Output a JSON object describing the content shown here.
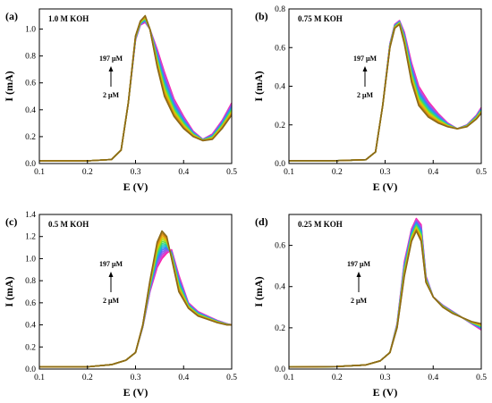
{
  "chart_data": [
    {
      "type": "line",
      "panel_label": "(a)",
      "condition": "1.0 M KOH",
      "xlabel": "E (V)",
      "ylabel": "I (mA)",
      "xlim": [
        0.1,
        0.5
      ],
      "ylim": [
        0.0,
        1.15
      ],
      "xticks": [
        "0.1",
        "0.2",
        "0.3",
        "0.4",
        "0.5"
      ],
      "yticks": [
        "0.0",
        "0.2",
        "0.4",
        "0.6",
        "0.8",
        "1.0"
      ],
      "ytick_values": [
        0.0,
        0.2,
        0.4,
        0.6,
        0.8,
        1.0
      ],
      "conc_high": "197 μM",
      "conc_low": "2 μM",
      "curve_count": 14,
      "series_low": {
        "x": [
          0.1,
          0.2,
          0.25,
          0.27,
          0.285,
          0.3,
          0.31,
          0.32,
          0.33,
          0.345,
          0.36,
          0.38,
          0.4,
          0.42,
          0.44,
          0.46,
          0.48,
          0.5
        ],
        "y": [
          0.02,
          0.02,
          0.03,
          0.1,
          0.45,
          0.95,
          1.06,
          1.1,
          1.0,
          0.72,
          0.5,
          0.35,
          0.26,
          0.2,
          0.17,
          0.18,
          0.26,
          0.36
        ]
      },
      "series_high": {
        "x": [
          0.1,
          0.2,
          0.25,
          0.27,
          0.285,
          0.3,
          0.31,
          0.32,
          0.33,
          0.345,
          0.36,
          0.38,
          0.4,
          0.42,
          0.44,
          0.46,
          0.48,
          0.5
        ],
        "y": [
          0.02,
          0.02,
          0.03,
          0.1,
          0.45,
          0.92,
          1.03,
          1.05,
          1.0,
          0.85,
          0.68,
          0.48,
          0.35,
          0.24,
          0.18,
          0.22,
          0.32,
          0.45
        ]
      }
    },
    {
      "type": "line",
      "panel_label": "(b)",
      "condition": "0.75 M KOH",
      "xlabel": "E (V)",
      "ylabel": "I (mA)",
      "xlim": [
        0.1,
        0.5
      ],
      "ylim": [
        0.0,
        0.8
      ],
      "xticks": [
        "0.1",
        "0.2",
        "0.3",
        "0.4",
        "0.5"
      ],
      "yticks": [
        "0.0",
        "0.2",
        "0.4",
        "0.6",
        "0.8"
      ],
      "ytick_values": [
        0.0,
        0.2,
        0.4,
        0.6,
        0.8
      ],
      "conc_high": "197 μM",
      "conc_low": "2 μM",
      "curve_count": 14,
      "series_low": {
        "x": [
          0.1,
          0.2,
          0.26,
          0.28,
          0.295,
          0.31,
          0.32,
          0.33,
          0.34,
          0.355,
          0.37,
          0.39,
          0.41,
          0.43,
          0.45,
          0.47,
          0.49,
          0.5
        ],
        "y": [
          0.015,
          0.015,
          0.02,
          0.06,
          0.3,
          0.6,
          0.7,
          0.72,
          0.62,
          0.42,
          0.3,
          0.24,
          0.21,
          0.19,
          0.18,
          0.19,
          0.23,
          0.26
        ]
      },
      "series_high": {
        "x": [
          0.1,
          0.2,
          0.26,
          0.28,
          0.295,
          0.31,
          0.32,
          0.33,
          0.34,
          0.355,
          0.37,
          0.39,
          0.41,
          0.43,
          0.45,
          0.47,
          0.49,
          0.5
        ],
        "y": [
          0.015,
          0.015,
          0.02,
          0.06,
          0.3,
          0.62,
          0.72,
          0.74,
          0.68,
          0.52,
          0.4,
          0.32,
          0.26,
          0.21,
          0.18,
          0.2,
          0.25,
          0.29
        ]
      }
    },
    {
      "type": "line",
      "panel_label": "(c)",
      "condition": "0.5 M KOH",
      "xlabel": "E (V)",
      "ylabel": "I (mA)",
      "xlim": [
        0.1,
        0.5
      ],
      "ylim": [
        0.0,
        1.4
      ],
      "xticks": [
        "0.1",
        "0.2",
        "0.3",
        "0.4",
        "0.5"
      ],
      "yticks": [
        "0.0",
        "0.2",
        "0.4",
        "0.6",
        "0.8",
        "1.0",
        "1.2",
        "1.4"
      ],
      "ytick_values": [
        0.0,
        0.2,
        0.4,
        0.6,
        0.8,
        1.0,
        1.2,
        1.4
      ],
      "conc_high": "197 μM",
      "conc_low": "2 μM",
      "curve_count": 14,
      "series_low": {
        "x": [
          0.1,
          0.2,
          0.25,
          0.28,
          0.3,
          0.315,
          0.33,
          0.345,
          0.355,
          0.365,
          0.375,
          0.39,
          0.41,
          0.43,
          0.45,
          0.47,
          0.49,
          0.5
        ],
        "y": [
          0.02,
          0.02,
          0.04,
          0.08,
          0.15,
          0.4,
          0.8,
          1.15,
          1.25,
          1.2,
          1.0,
          0.7,
          0.55,
          0.48,
          0.45,
          0.42,
          0.4,
          0.4
        ]
      },
      "series_high": {
        "x": [
          0.1,
          0.2,
          0.25,
          0.28,
          0.3,
          0.315,
          0.33,
          0.345,
          0.355,
          0.365,
          0.375,
          0.39,
          0.41,
          0.43,
          0.45,
          0.47,
          0.49,
          0.5
        ],
        "y": [
          0.02,
          0.02,
          0.04,
          0.08,
          0.15,
          0.38,
          0.7,
          0.92,
          1.0,
          1.05,
          1.08,
          0.85,
          0.6,
          0.52,
          0.48,
          0.44,
          0.41,
          0.4
        ]
      }
    },
    {
      "type": "line",
      "panel_label": "(d)",
      "condition": "0.25 M KOH",
      "xlabel": "E (V)",
      "ylabel": "I (mA)",
      "xlim": [
        0.1,
        0.5
      ],
      "ylim": [
        0.0,
        0.75
      ],
      "xticks": [
        "0.1",
        "0.2",
        "0.3",
        "0.4",
        "0.5"
      ],
      "yticks": [
        "0.0",
        "0.2",
        "0.4",
        "0.6"
      ],
      "ytick_values": [
        0.0,
        0.2,
        0.4,
        0.6
      ],
      "conc_high": "197 μM",
      "conc_low": "2 μM",
      "curve_count": 14,
      "series_low": {
        "x": [
          0.1,
          0.2,
          0.26,
          0.29,
          0.31,
          0.325,
          0.34,
          0.355,
          0.365,
          0.375,
          0.385,
          0.4,
          0.42,
          0.44,
          0.46,
          0.48,
          0.5
        ],
        "y": [
          0.01,
          0.012,
          0.02,
          0.04,
          0.08,
          0.2,
          0.45,
          0.62,
          0.67,
          0.62,
          0.42,
          0.35,
          0.3,
          0.27,
          0.25,
          0.23,
          0.22
        ]
      },
      "series_high": {
        "x": [
          0.1,
          0.2,
          0.26,
          0.29,
          0.31,
          0.325,
          0.34,
          0.355,
          0.365,
          0.375,
          0.385,
          0.4,
          0.42,
          0.44,
          0.46,
          0.48,
          0.5
        ],
        "y": [
          0.01,
          0.012,
          0.02,
          0.04,
          0.08,
          0.22,
          0.52,
          0.68,
          0.73,
          0.7,
          0.45,
          0.35,
          0.31,
          0.28,
          0.25,
          0.22,
          0.19
        ]
      }
    }
  ]
}
